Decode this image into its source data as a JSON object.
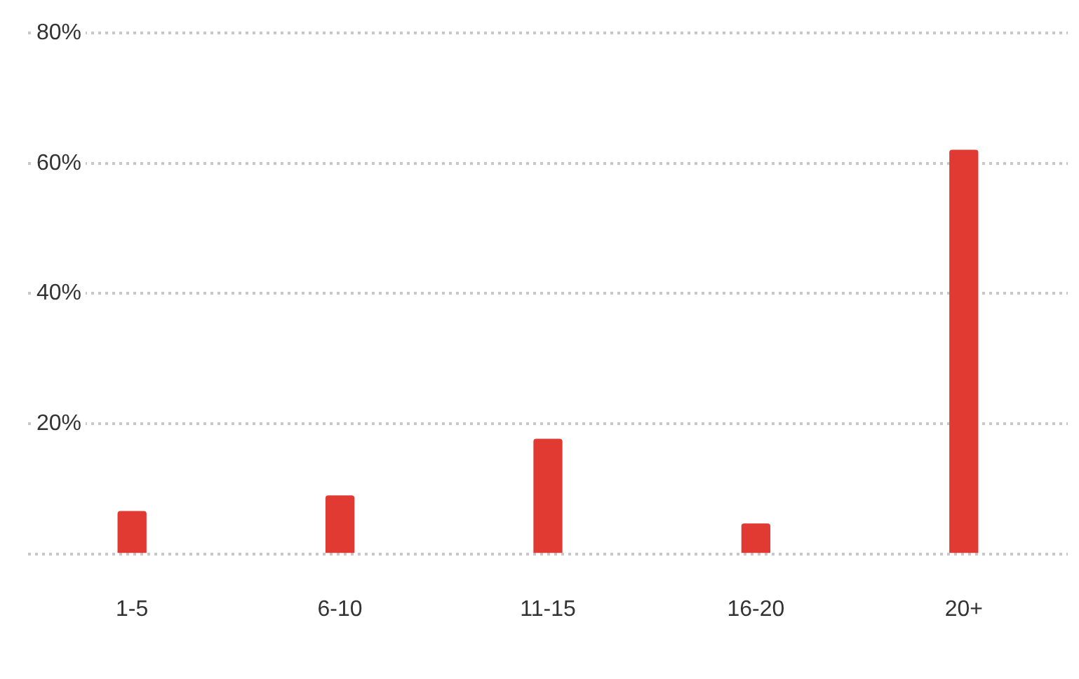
{
  "chart_data": {
    "type": "bar",
    "categories": [
      "1-5",
      "6-10",
      "11-15",
      "16-20",
      "20+"
    ],
    "values": [
      6.5,
      8.9,
      17.6,
      4.6,
      62
    ],
    "color": "#e03a33",
    "ylim": [
      0,
      80
    ],
    "yticks": [
      {
        "value": 0,
        "label": null
      },
      {
        "value": 20,
        "label": "20%"
      },
      {
        "value": 40,
        "label": "40%"
      },
      {
        "value": 60,
        "label": "60%"
      },
      {
        "value": 80,
        "label": "80%"
      }
    ],
    "grid": "y"
  }
}
